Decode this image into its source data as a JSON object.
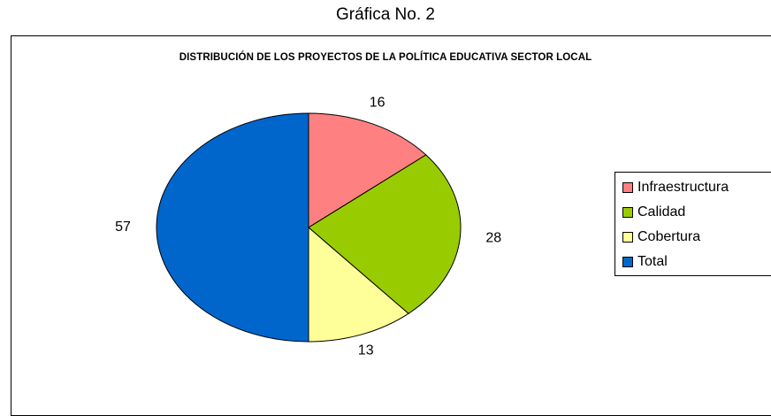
{
  "caption": "Gráfica No. 2",
  "chart_data": {
    "type": "pie",
    "title": "DISTRIBUCIÓN DE LOS PROYECTOS DE LA POLÍTICA EDUCATIVA SECTOR LOCAL",
    "categories": [
      "Infraestructura",
      "Calidad",
      "Cobertura",
      "Total"
    ],
    "values": [
      16,
      28,
      13,
      57
    ],
    "colors": [
      "#FF8080",
      "#99CC00",
      "#FFFF99",
      "#0066CC"
    ],
    "legend_position": "right"
  }
}
